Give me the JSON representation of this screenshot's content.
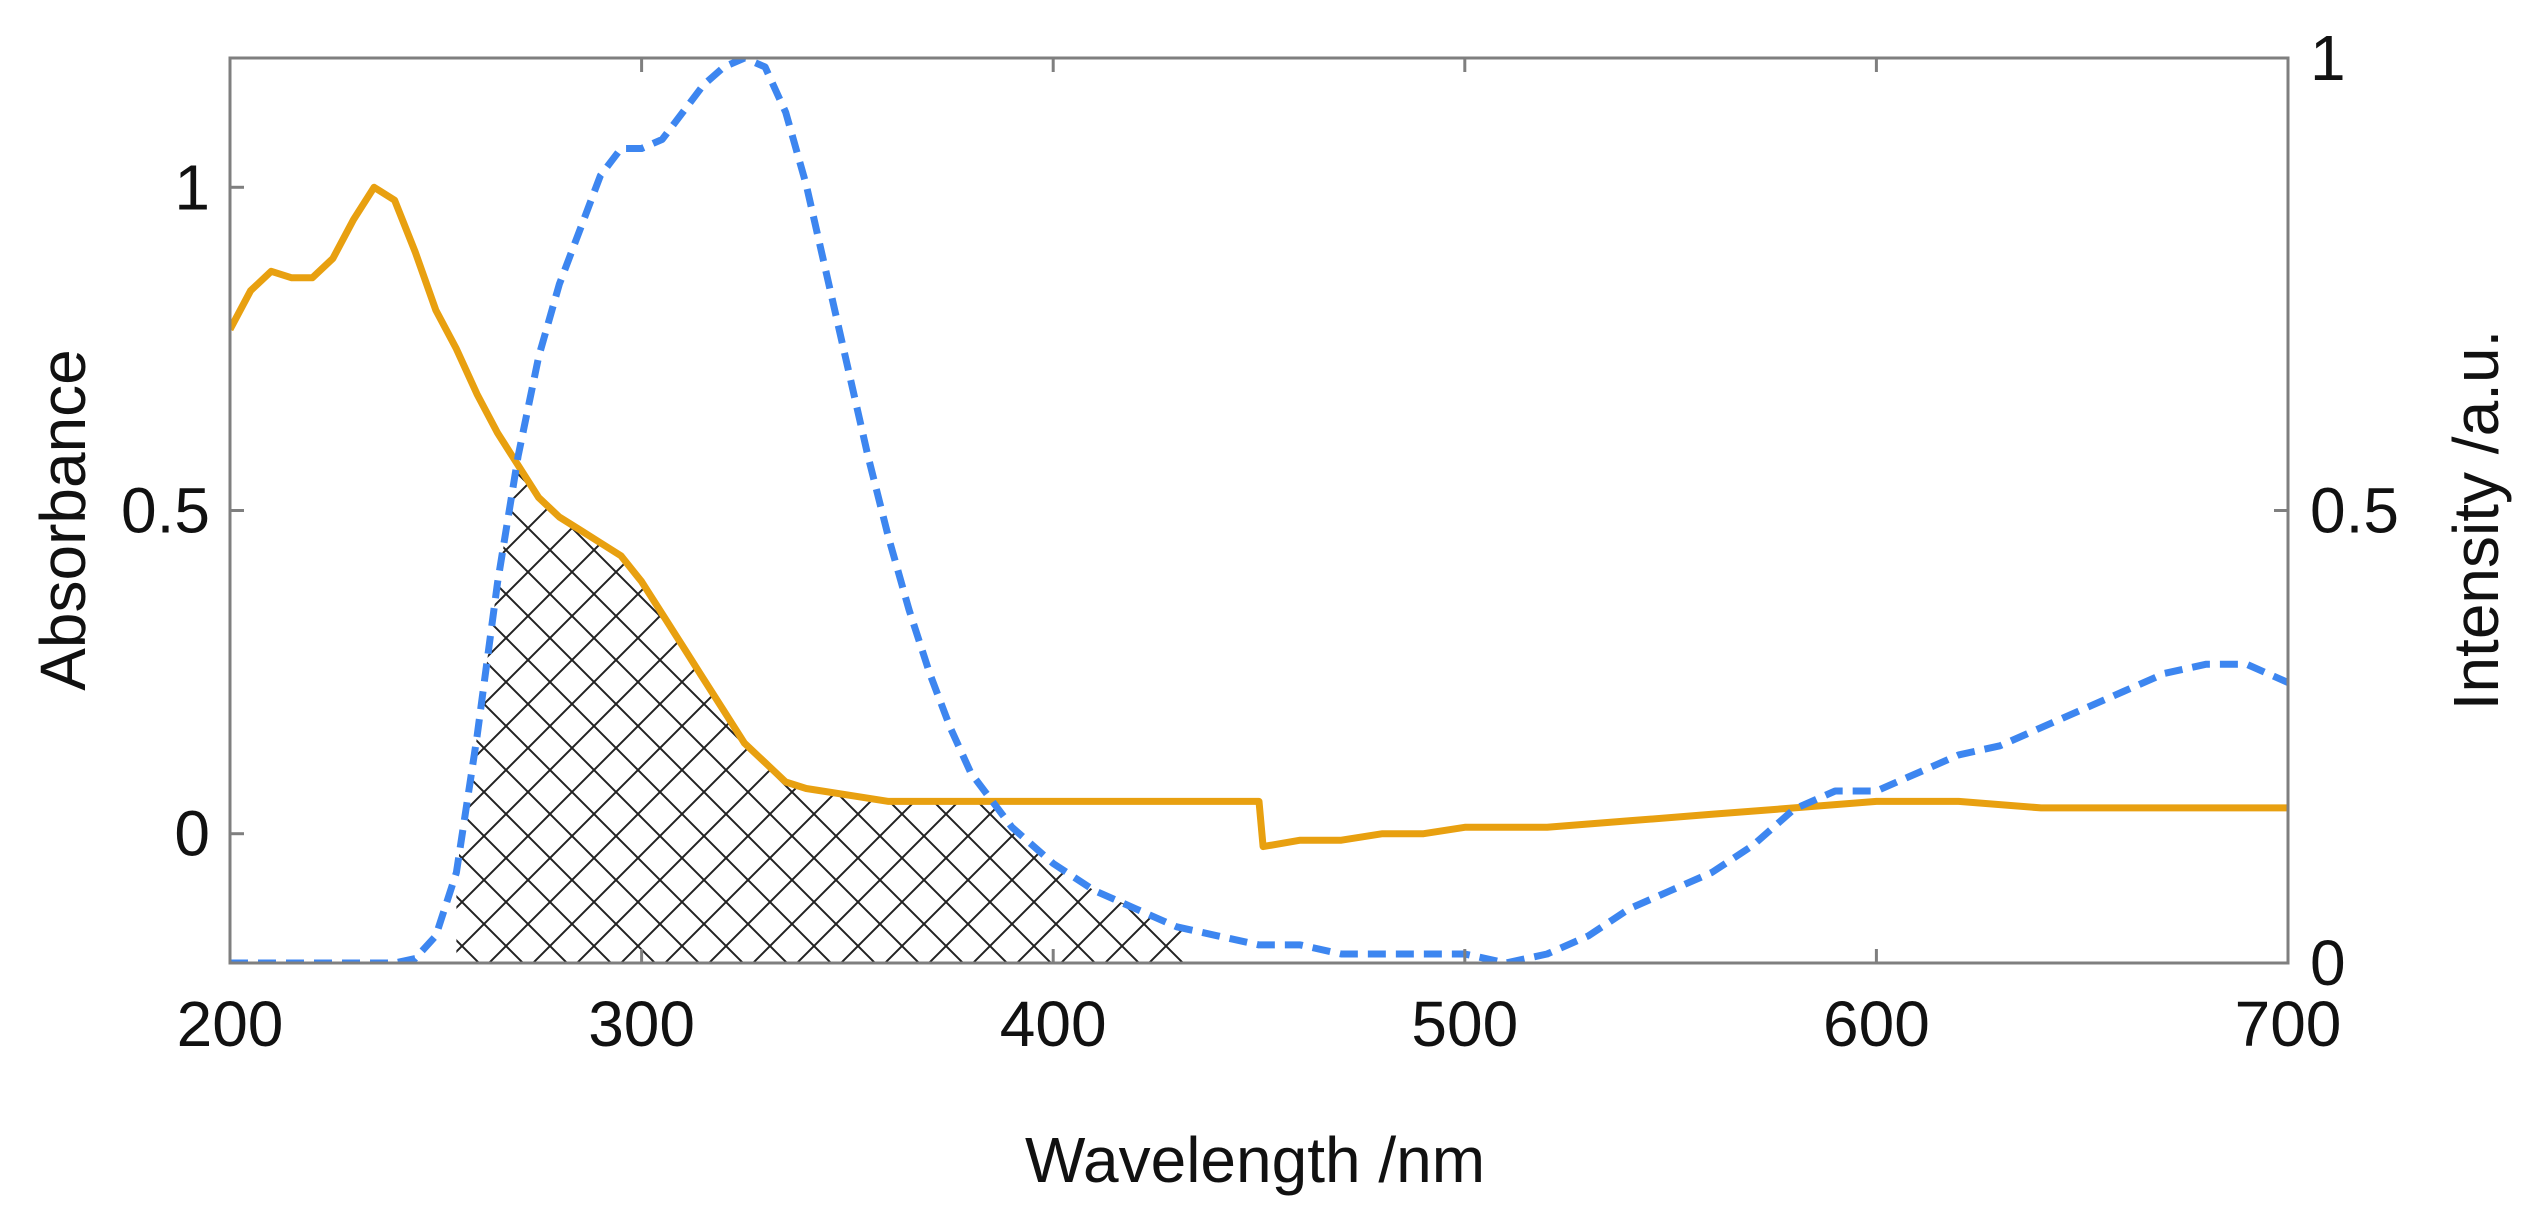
{
  "chart_data": {
    "type": "line",
    "title": "",
    "xlabel": "Wavelength /nm",
    "ylabel_left": "Absorbance",
    "ylabel_right": "Intensity /a.u.",
    "xlim": [
      200,
      700
    ],
    "ylim_left": [
      -0.2,
      1.2
    ],
    "ylim_right": [
      0,
      1
    ],
    "x_ticks": [
      200,
      300,
      400,
      500,
      600,
      700
    ],
    "y_ticks_left": [
      0,
      0.5,
      1
    ],
    "y_ticks_right": [
      0,
      0.5,
      1
    ],
    "grid": false,
    "series": [
      {
        "name": "Absorbance",
        "axis": "left",
        "style": "solid",
        "color": "#E8A010",
        "x": [
          200,
          205,
          210,
          215,
          220,
          225,
          230,
          235,
          240,
          245,
          250,
          255,
          260,
          265,
          270,
          275,
          280,
          285,
          290,
          295,
          300,
          305,
          310,
          315,
          320,
          325,
          330,
          335,
          340,
          350,
          360,
          370,
          380,
          400,
          420,
          440,
          450,
          451,
          460,
          470,
          480,
          490,
          500,
          520,
          540,
          560,
          580,
          600,
          620,
          640,
          660,
          680,
          690,
          700
        ],
        "y": [
          0.78,
          0.84,
          0.87,
          0.86,
          0.86,
          0.89,
          0.95,
          1.0,
          0.98,
          0.9,
          0.81,
          0.75,
          0.68,
          0.62,
          0.57,
          0.52,
          0.49,
          0.47,
          0.45,
          0.43,
          0.39,
          0.34,
          0.29,
          0.24,
          0.19,
          0.14,
          0.11,
          0.08,
          0.07,
          0.06,
          0.05,
          0.05,
          0.05,
          0.05,
          0.05,
          0.05,
          0.05,
          -0.02,
          -0.01,
          -0.01,
          0.0,
          0.0,
          0.01,
          0.01,
          0.02,
          0.03,
          0.04,
          0.05,
          0.05,
          0.04,
          0.04,
          0.04,
          0.04,
          0.04
        ]
      },
      {
        "name": "Intensity",
        "axis": "right",
        "style": "dashed",
        "color": "#3D86F0",
        "x": [
          200,
          220,
          240,
          245,
          250,
          255,
          260,
          265,
          270,
          275,
          280,
          285,
          290,
          295,
          300,
          305,
          310,
          315,
          320,
          325,
          330,
          335,
          340,
          345,
          350,
          355,
          360,
          365,
          370,
          375,
          380,
          390,
          400,
          410,
          420,
          430,
          440,
          450,
          460,
          470,
          480,
          490,
          500,
          510,
          520,
          530,
          540,
          550,
          560,
          570,
          580,
          590,
          600,
          610,
          620,
          630,
          640,
          650,
          660,
          670,
          680,
          690,
          700
        ],
        "y": [
          0.0,
          0.0,
          0.0,
          0.005,
          0.03,
          0.1,
          0.25,
          0.42,
          0.56,
          0.67,
          0.75,
          0.81,
          0.87,
          0.9,
          0.9,
          0.91,
          0.94,
          0.97,
          0.99,
          1.0,
          0.99,
          0.94,
          0.86,
          0.76,
          0.66,
          0.56,
          0.47,
          0.39,
          0.32,
          0.26,
          0.21,
          0.15,
          0.11,
          0.08,
          0.06,
          0.04,
          0.03,
          0.02,
          0.02,
          0.01,
          0.01,
          0.01,
          0.01,
          0.0,
          0.01,
          0.03,
          0.06,
          0.08,
          0.1,
          0.13,
          0.17,
          0.19,
          0.19,
          0.21,
          0.23,
          0.24,
          0.26,
          0.28,
          0.3,
          0.32,
          0.33,
          0.33,
          0.31
        ]
      }
    ],
    "annotations": [
      {
        "type": "hatched-region",
        "description": "overlap of absorbance and emission",
        "x_range": [
          255,
          432
        ],
        "pattern": "crosshatch",
        "color": "#222222"
      }
    ]
  }
}
